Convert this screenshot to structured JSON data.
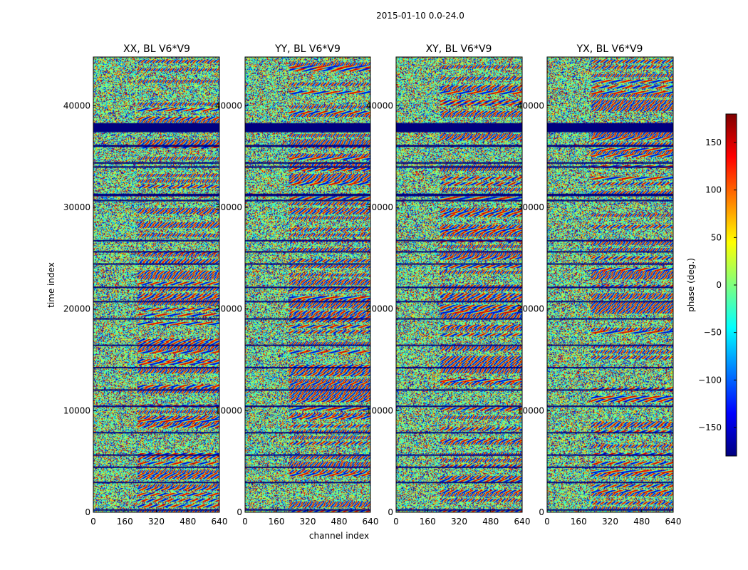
{
  "chart_data": {
    "type": "heatmap",
    "suptitle": "2015-01-10 0.0-24.0",
    "xlabel": "channel index",
    "ylabel": "time index",
    "xlim": [
      0,
      640
    ],
    "ylim": [
      0,
      44800
    ],
    "x_ticks": [
      "0",
      "160",
      "320",
      "480",
      "640"
    ],
    "x_tick_values": [
      0,
      160,
      320,
      480,
      640
    ],
    "y_ticks": [
      "0",
      "10000",
      "20000",
      "30000",
      "40000"
    ],
    "y_tick_values": [
      0,
      10000,
      20000,
      30000,
      40000
    ],
    "panels": [
      {
        "title": "XX, BL V6*V9",
        "seed": 11
      },
      {
        "title": "YY, BL V6*V9",
        "seed": 23
      },
      {
        "title": "XY, BL V6*V9",
        "seed": 37
      },
      {
        "title": "YX, BL V6*V9",
        "seed": 51
      }
    ],
    "flagged_rows_time_index": [
      [
        37400,
        38300
      ],
      [
        35950,
        36150
      ],
      [
        34300,
        34450
      ],
      [
        33900,
        34050
      ],
      [
        31100,
        31350
      ],
      [
        30600,
        30750
      ],
      [
        26700,
        26800
      ],
      [
        25600,
        25700
      ],
      [
        24400,
        24500
      ],
      [
        22100,
        22200
      ],
      [
        20700,
        20800
      ],
      [
        19000,
        19100
      ],
      [
        16400,
        16500
      ],
      [
        14200,
        14300
      ],
      [
        12000,
        12100
      ],
      [
        10400,
        10500
      ],
      [
        7800,
        7900
      ],
      [
        5600,
        5700
      ],
      [
        4400,
        4500
      ],
      [
        2900,
        3000
      ],
      [
        200,
        300
      ]
    ],
    "colorbar": {
      "label": "phase (deg.)",
      "range": [
        -180,
        180
      ],
      "ticks": [
        "−150",
        "−100",
        "−50",
        "0",
        "50",
        "100",
        "150"
      ],
      "tick_values": [
        -150,
        -100,
        -50,
        0,
        50,
        100,
        150
      ],
      "colormap": "jet",
      "stops": [
        "#00007f",
        "#0000ff",
        "#007fff",
        "#00ffff",
        "#7fff7f",
        "#ffff00",
        "#ff7f00",
        "#ff0000",
        "#7f0000"
      ]
    }
  }
}
